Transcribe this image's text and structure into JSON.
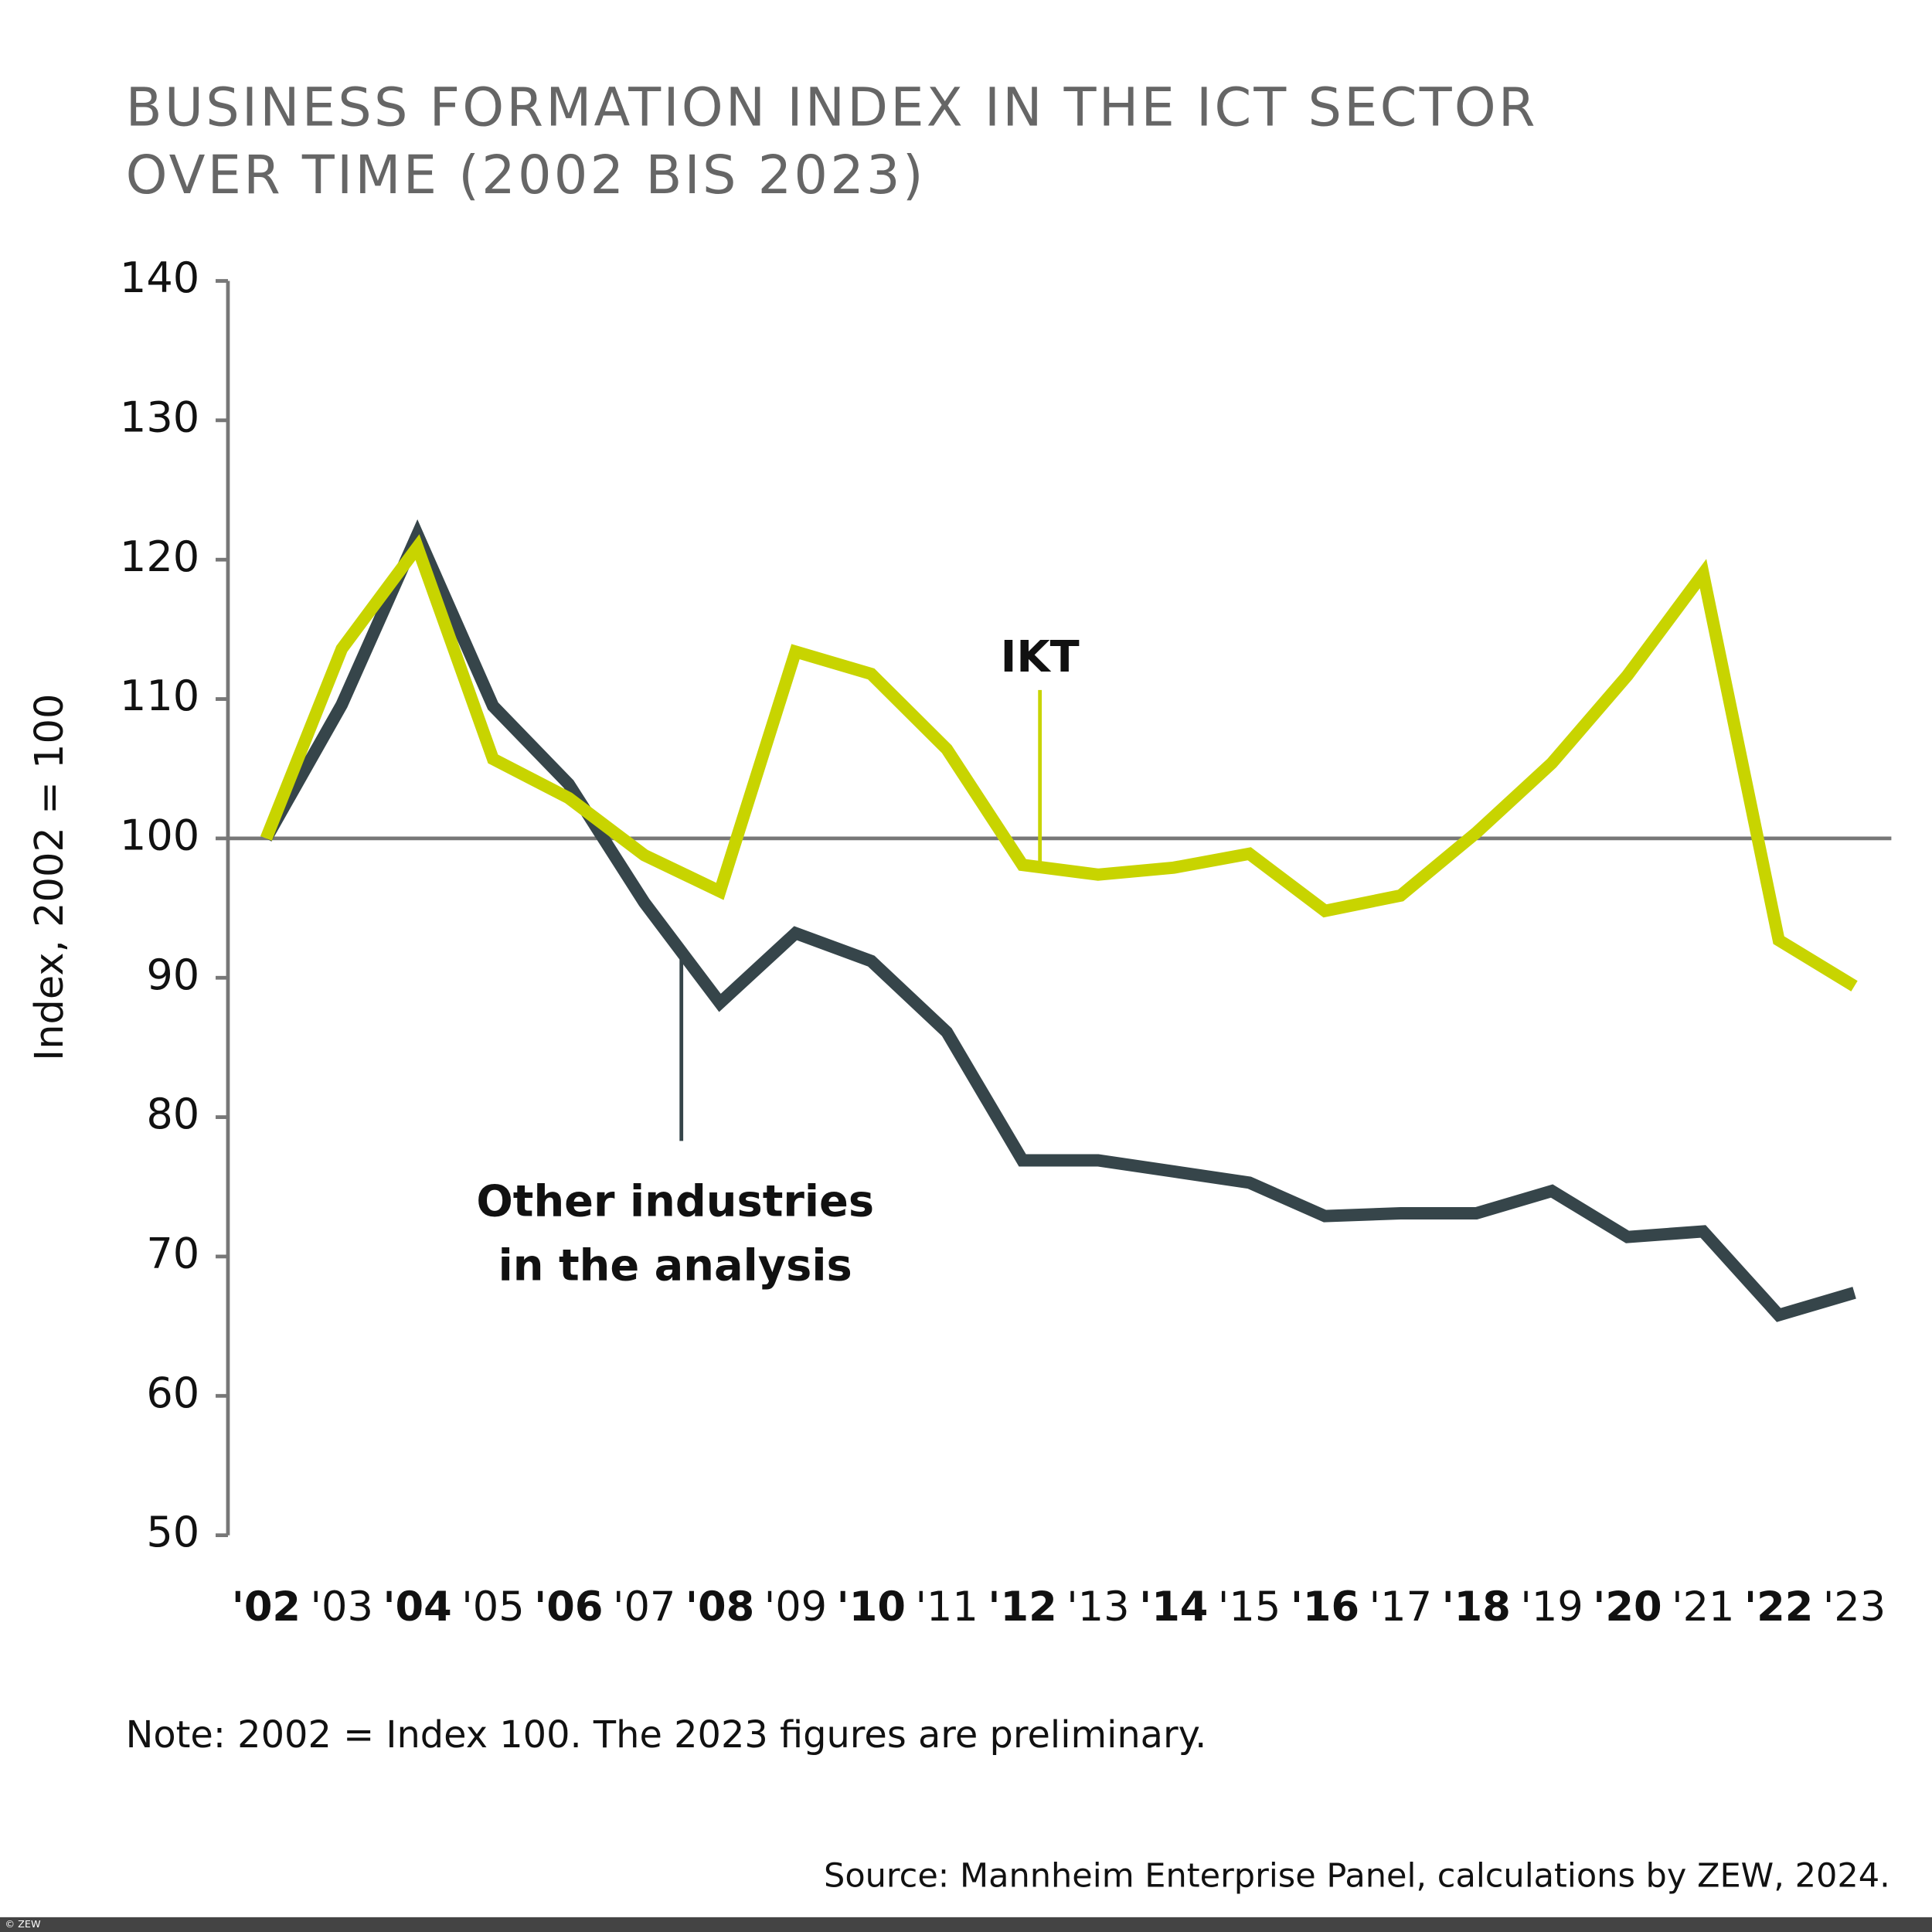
{
  "chart_data": {
    "type": "line",
    "title": [
      "BUSINESS FORMATION INDEX IN THE ICT SECTOR",
      "OVER TIME (2002 BIS 2023)"
    ],
    "y_label": "Index, 2002 = 100",
    "categories": [
      "'02",
      "'03",
      "'04",
      "'05",
      "'06",
      "'07",
      "'08",
      "'09",
      "'10",
      "'11",
      "'12",
      "'13",
      "'14",
      "'15",
      "'16",
      "'17",
      "'18",
      "'19",
      "'20",
      "'21",
      "'22",
      "'23"
    ],
    "series": [
      {
        "name": "Other industries in the analysis",
        "color": "#36454a",
        "values": [
          100,
          109.6,
          121.8,
          109.5,
          103.9,
          95.4,
          88.2,
          93.2,
          91.2,
          86.1,
          76.9,
          76.9,
          76.1,
          75.3,
          72.9,
          73.1,
          73.1,
          74.7,
          71.4,
          71.8,
          65.8,
          67.4
        ]
      },
      {
        "name": "IKT",
        "color": "#c8d400",
        "values": [
          100,
          113.6,
          120.9,
          105.7,
          102.9,
          98.8,
          96.2,
          113.4,
          111.8,
          106.4,
          98.1,
          97.4,
          97.9,
          98.9,
          94.8,
          95.9,
          100.4,
          105.4,
          111.7,
          119.0,
          92.7,
          89.4
        ]
      }
    ],
    "ylim": [
      50,
      140
    ],
    "yticks": [
      50,
      60,
      70,
      80,
      90,
      100,
      110,
      120,
      130,
      140
    ],
    "reference_line": 100,
    "note": "Note: 2002 = Index 100. The 2023 figures are preliminary.",
    "source": "Source: Mannheim Enterprise Panel, calculations by ZEW, 2024.",
    "copyright": "© ZEW"
  }
}
